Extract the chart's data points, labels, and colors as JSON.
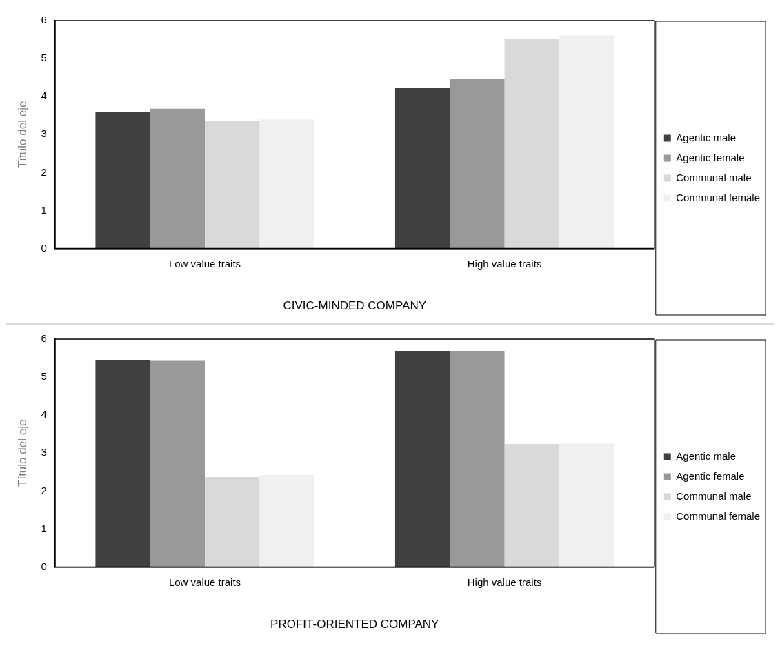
{
  "chart_data": [
    {
      "type": "bar",
      "xlabel": "CIVIC-MINDED COMPANY",
      "ylabel": "Título del eje",
      "categories": [
        "Low value traits",
        "High value traits"
      ],
      "ylim": [
        0,
        6
      ],
      "yticks": [
        0,
        1,
        2,
        3,
        4,
        5,
        6
      ],
      "grid": false,
      "legend": "right",
      "series": [
        {
          "name": "Agentic male",
          "color": "#404040",
          "values": [
            3.6,
            4.24
          ]
        },
        {
          "name": "Agentic female",
          "color": "#999999",
          "values": [
            3.68,
            4.47
          ]
        },
        {
          "name": "Communal male",
          "color": "#d9d9d9",
          "values": [
            3.35,
            5.53
          ]
        },
        {
          "name": "Communal female",
          "color": "#f0f0f0",
          "values": [
            3.4,
            5.61
          ]
        }
      ]
    },
    {
      "type": "bar",
      "xlabel": "PROFIT-ORIENTED COMPANY",
      "ylabel": "Título del eje",
      "categories": [
        "Low value traits",
        "High value traits"
      ],
      "ylim": [
        0,
        6
      ],
      "yticks": [
        0,
        1,
        2,
        3,
        4,
        5,
        6
      ],
      "grid": false,
      "legend": "right",
      "series": [
        {
          "name": "Agentic male",
          "color": "#404040",
          "values": [
            5.44,
            5.69
          ]
        },
        {
          "name": "Agentic female",
          "color": "#999999",
          "values": [
            5.43,
            5.69
          ]
        },
        {
          "name": "Communal male",
          "color": "#d9d9d9",
          "values": [
            2.37,
            3.24
          ]
        },
        {
          "name": "Communal female",
          "color": "#f0f0f0",
          "values": [
            2.43,
            3.25
          ]
        }
      ]
    }
  ]
}
